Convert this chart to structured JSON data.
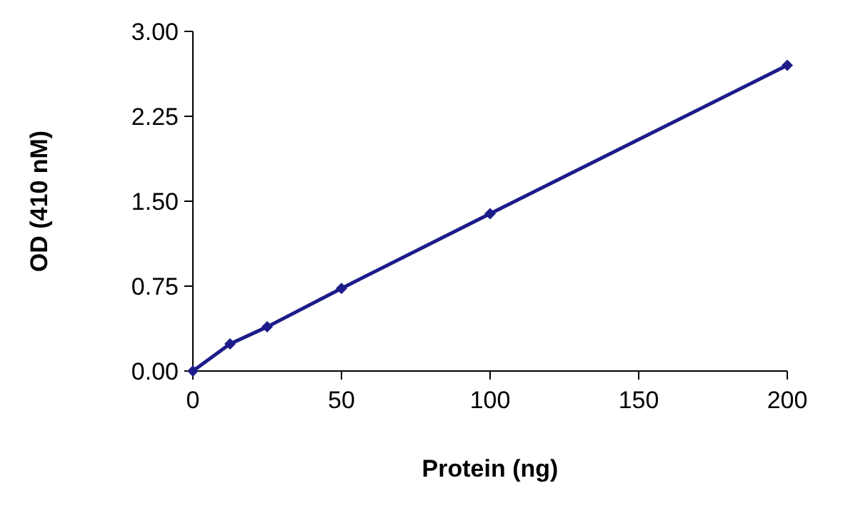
{
  "chart_data": {
    "type": "line",
    "xlabel": "Protein (ng)",
    "ylabel": "OD (410 nM)",
    "x": [
      0,
      12.5,
      25,
      50,
      100,
      200
    ],
    "series": [
      {
        "color": "#1c1c8a",
        "values": [
          0,
          0.24,
          0.39,
          0.73,
          1.39,
          2.7
        ]
      }
    ],
    "xlim": [
      0,
      200
    ],
    "xticks": [
      0,
      50,
      100,
      150,
      200
    ],
    "ylim": [
      0,
      3
    ],
    "yticks": [
      {
        "value": 0,
        "label": "0.00"
      },
      {
        "value": 0.75,
        "label": "0.75"
      },
      {
        "value": 1.5,
        "label": "1.50"
      },
      {
        "value": 2.25,
        "label": "2.25"
      },
      {
        "value": 3,
        "label": "3.00"
      }
    ],
    "marker": "diamond",
    "line_style": "solid",
    "grid": false
  }
}
